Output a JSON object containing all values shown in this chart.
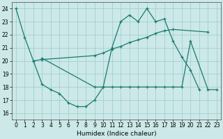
{
  "bg_color": "#cce8e8",
  "line_color": "#1a7a6e",
  "grid_color": "#99cccc",
  "xlabel": "Humidex (Indice chaleur)",
  "xlim": [
    -0.5,
    23.5
  ],
  "ylim": [
    15.5,
    24.5
  ],
  "yticks": [
    16,
    17,
    18,
    19,
    20,
    21,
    22,
    23,
    24
  ],
  "xticks": [
    0,
    1,
    2,
    3,
    4,
    5,
    6,
    7,
    8,
    9,
    10,
    11,
    12,
    13,
    14,
    15,
    16,
    17,
    18,
    19,
    20,
    21,
    22,
    23
  ],
  "line1_x": [
    0,
    1,
    2,
    3,
    4,
    5,
    6,
    7,
    8,
    9,
    10,
    11,
    12,
    13,
    14,
    15,
    16,
    17,
    18,
    19,
    20,
    21
  ],
  "line1_y": [
    24.0,
    21.8,
    20.0,
    18.2,
    17.8,
    17.5,
    16.8,
    16.5,
    16.5,
    17.0,
    18.0,
    21.0,
    23.0,
    23.5,
    23.0,
    24.0,
    23.0,
    23.2,
    21.5,
    20.3,
    19.3,
    17.8
  ],
  "line2_x": [
    2,
    3,
    9,
    10,
    11,
    12,
    13,
    14,
    15,
    16,
    17,
    18,
    22
  ],
  "line2_y": [
    20.0,
    20.1,
    20.4,
    20.6,
    20.9,
    21.1,
    21.4,
    21.6,
    21.8,
    22.1,
    22.3,
    22.4,
    22.2
  ],
  "line3_x": [
    3,
    9,
    10,
    11,
    12,
    13,
    14,
    15,
    16,
    17,
    18,
    19,
    20,
    22,
    23
  ],
  "line3_y": [
    20.2,
    18.0,
    18.0,
    18.0,
    18.0,
    18.0,
    18.0,
    18.0,
    18.0,
    18.0,
    18.0,
    18.0,
    21.5,
    17.8,
    17.8
  ]
}
